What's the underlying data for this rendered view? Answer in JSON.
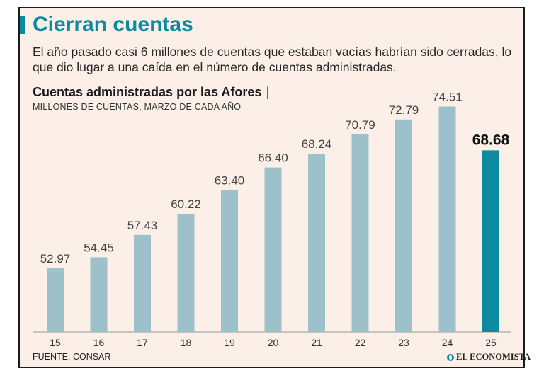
{
  "header": {
    "title": "Cierran cuentas",
    "subtitle": "El año pasado casi 6 millones de cuentas que estaban vacías habrían sido cerradas, lo que dio lugar a una caída en el número de cuentas administradas."
  },
  "chart_data": {
    "type": "bar",
    "title": "Cuentas administradas por las Afores",
    "title_separator": "|",
    "units_label": "MILLONES DE CUENTAS, MARZO DE CADA AÑO",
    "categories": [
      "15",
      "16",
      "17",
      "18",
      "19",
      "20",
      "21",
      "22",
      "23",
      "24",
      "25"
    ],
    "values": [
      52.97,
      54.45,
      57.43,
      60.22,
      63.4,
      66.4,
      68.24,
      70.79,
      72.79,
      74.51,
      68.68
    ],
    "value_labels": [
      "52.97",
      "54.45",
      "57.43",
      "60.22",
      "63.40",
      "66.40",
      "68.24",
      "70.79",
      "72.79",
      "74.51",
      "68.68"
    ],
    "highlight_index": 10,
    "ylim": [
      44.5,
      75.5
    ],
    "grid": false,
    "colors": {
      "bar": "#9cc1ca",
      "highlight": "#0b8aa0",
      "axis": "#9a9a9a"
    }
  },
  "footer": {
    "source": "FUENTE: CONSAR",
    "brand": "EL ECONOMISTA"
  }
}
